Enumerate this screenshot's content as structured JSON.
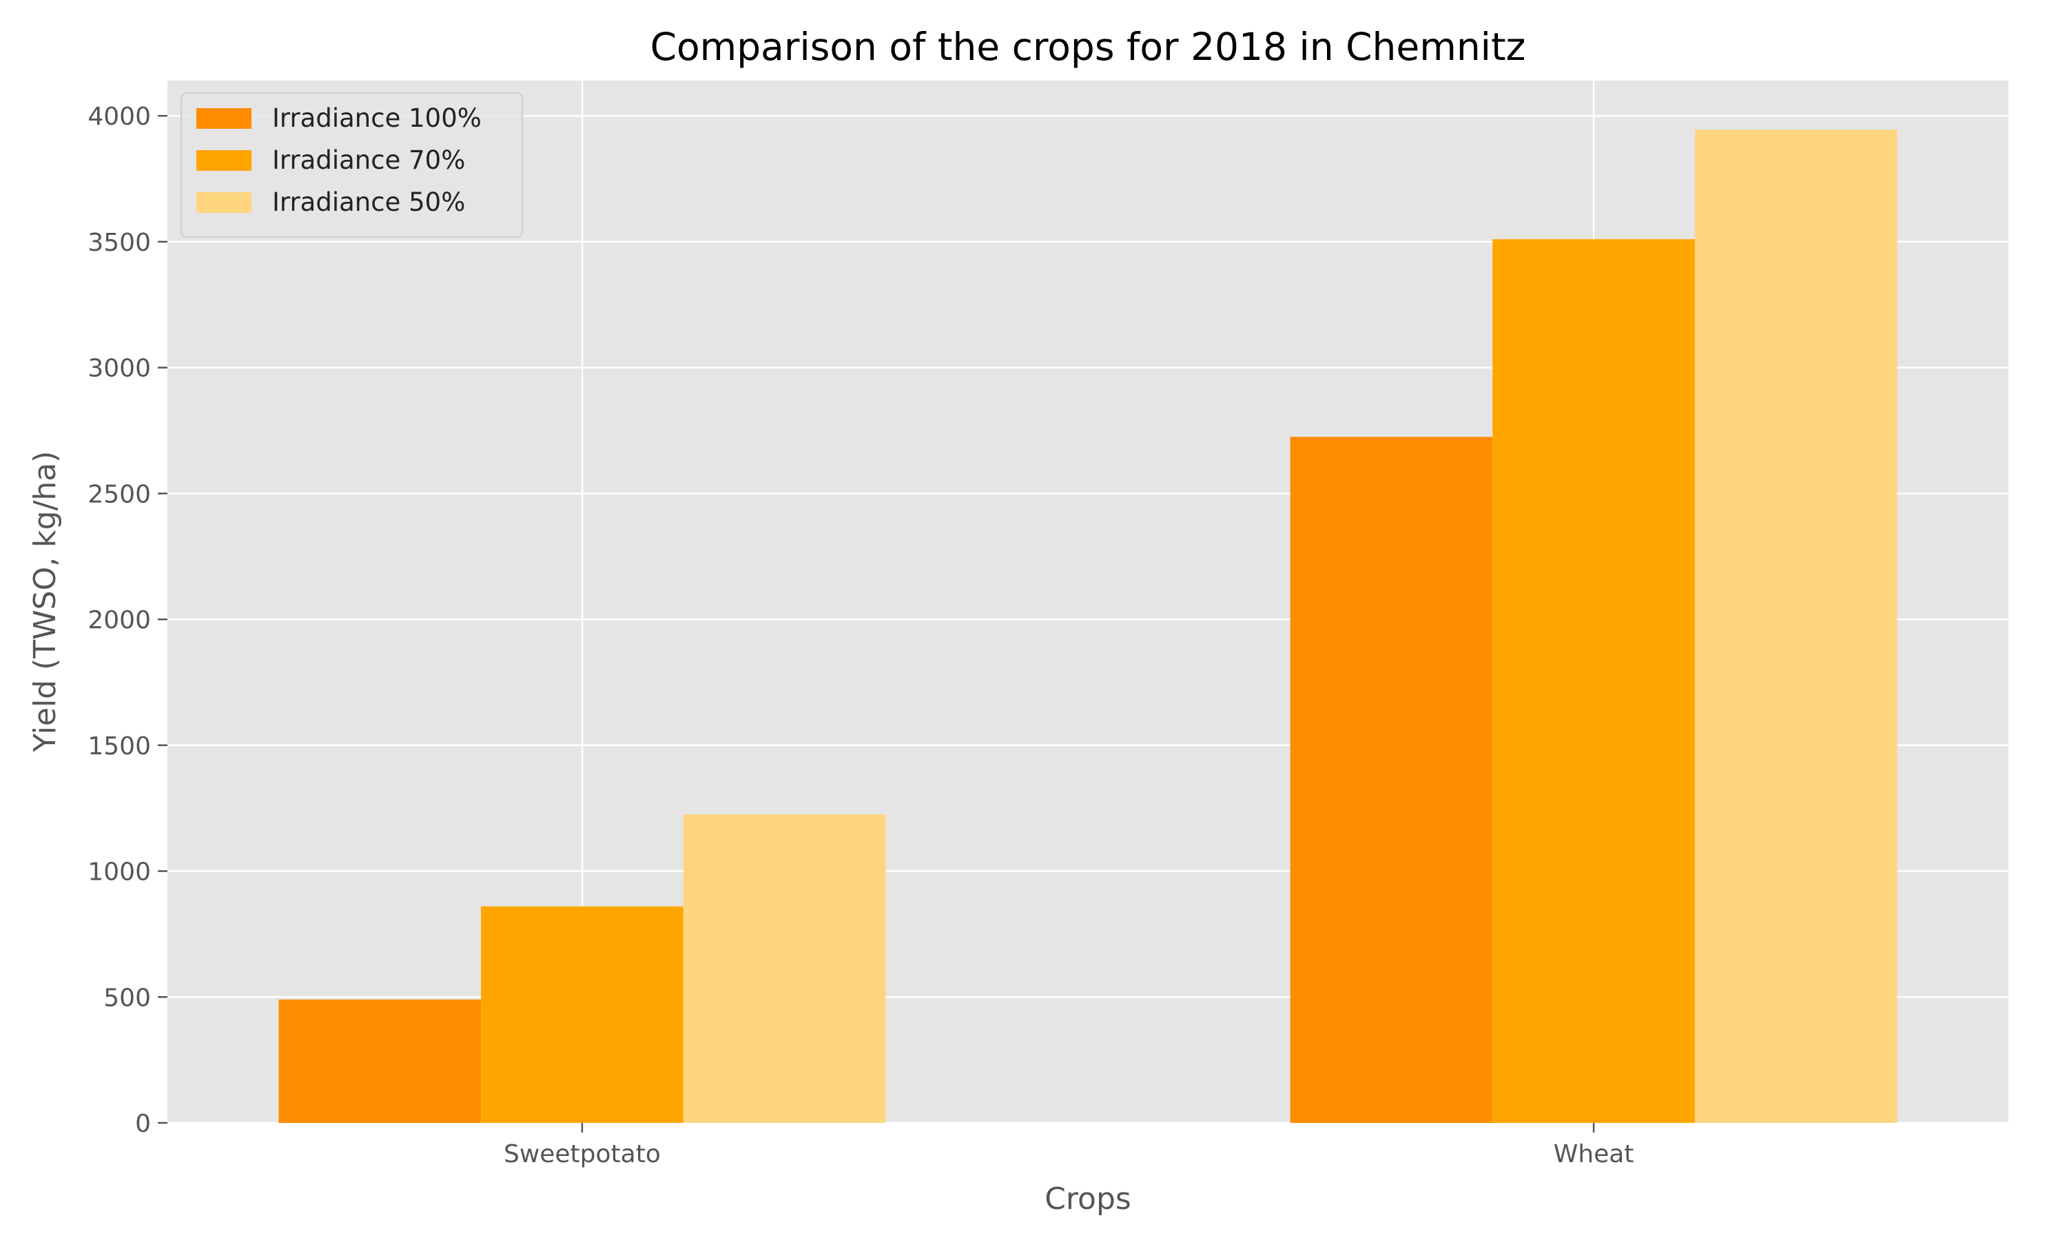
{
  "chart_data": {
    "type": "bar",
    "title": "Comparison of the crops for 2018 in Chemnitz",
    "xlabel": "Crops",
    "ylabel": "Yield (TWSO, kg/ha)",
    "categories": [
      "Sweetpotato",
      "Wheat"
    ],
    "series": [
      {
        "name": "Irradiance 100%",
        "color": "#ff8c00",
        "values": [
          490,
          2725
        ]
      },
      {
        "name": "Irradiance 70%",
        "color": "#ffa500",
        "values": [
          860,
          3510
        ]
      },
      {
        "name": "Irradiance 50%",
        "color": "#ffd580",
        "values": [
          1225,
          3945
        ]
      }
    ],
    "ylim": [
      0,
      4140
    ],
    "yticks": [
      0,
      500,
      1000,
      1500,
      2000,
      2500,
      3000,
      3500,
      4000
    ],
    "grid": true,
    "legend_position": "top-left",
    "background_color": "#e5e5e5",
    "grid_color": "#ffffff"
  }
}
